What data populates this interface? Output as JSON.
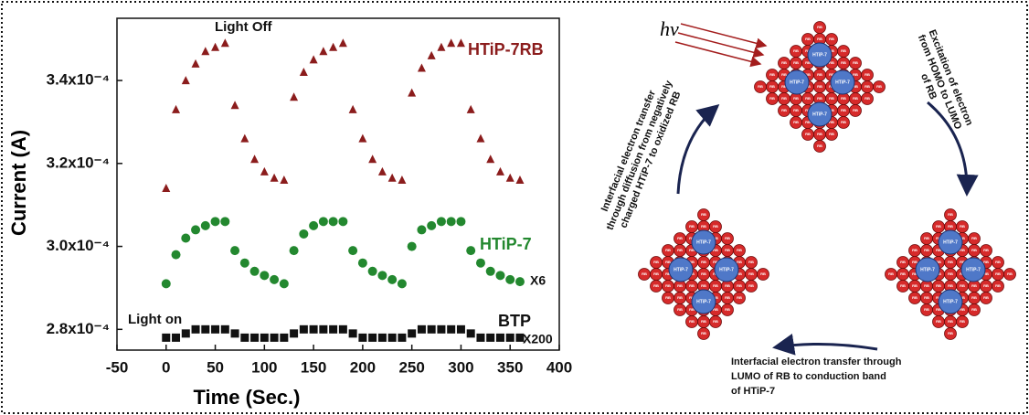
{
  "chart_data": {
    "type": "scatter",
    "xlabel": "Time (Sec.)",
    "ylabel": "Current (A)",
    "xlim": [
      -50,
      400
    ],
    "xticks": [
      -50,
      0,
      50,
      100,
      150,
      200,
      250,
      300,
      350,
      400
    ],
    "ylim": [
      0.000275,
      0.000355
    ],
    "yticks": [
      {
        "value": 0.00028,
        "label": "2.8x10⁻⁴"
      },
      {
        "value": 0.0003,
        "label": "3.0x10⁻⁴"
      },
      {
        "value": 0.00032,
        "label": "3.2x10⁻⁴"
      },
      {
        "value": 0.00034,
        "label": "3.4x10⁻⁴"
      }
    ],
    "x": [
      0,
      10,
      20,
      30,
      40,
      50,
      60,
      70,
      80,
      90,
      100,
      110,
      120,
      130,
      140,
      150,
      160,
      170,
      180,
      190,
      200,
      210,
      220,
      230,
      240,
      250,
      260,
      270,
      280,
      290,
      300,
      310,
      320,
      330,
      340,
      350,
      360
    ],
    "series": [
      {
        "name": "HTiP-7RB",
        "color": "#8b1c1c",
        "marker": "triangle",
        "values": [
          0.000314,
          0.000333,
          0.00034,
          0.000344,
          0.000347,
          0.000348,
          0.000349,
          0.000334,
          0.000326,
          0.000321,
          0.000318,
          0.0003165,
          0.000316,
          0.000336,
          0.000342,
          0.000345,
          0.000347,
          0.000348,
          0.000349,
          0.000333,
          0.000326,
          0.000321,
          0.000318,
          0.0003165,
          0.000316,
          0.000337,
          0.000343,
          0.000346,
          0.000348,
          0.000349,
          0.000349,
          0.000333,
          0.000326,
          0.000321,
          0.000318,
          0.0003165,
          0.000316
        ]
      },
      {
        "name": "HTiP-7",
        "color": "#23882f",
        "marker": "circle",
        "values": [
          0.000291,
          0.000298,
          0.000302,
          0.000304,
          0.000305,
          0.000306,
          0.000306,
          0.000299,
          0.000296,
          0.000294,
          0.000293,
          0.000292,
          0.000291,
          0.000299,
          0.000303,
          0.000305,
          0.000306,
          0.000306,
          0.000306,
          0.000299,
          0.000296,
          0.000294,
          0.000293,
          0.000292,
          0.000291,
          0.0003,
          0.000304,
          0.000305,
          0.000306,
          0.000306,
          0.000306,
          0.000299,
          0.000296,
          0.000294,
          0.000293,
          0.000292,
          0.0002915
        ]
      },
      {
        "name": "BTP",
        "color": "#111111",
        "marker": "square",
        "values": [
          0.000278,
          0.000278,
          0.000279,
          0.00028,
          0.00028,
          0.00028,
          0.00028,
          0.000279,
          0.000278,
          0.000278,
          0.000278,
          0.000278,
          0.000278,
          0.000279,
          0.00028,
          0.00028,
          0.00028,
          0.00028,
          0.00028,
          0.000279,
          0.000278,
          0.000278,
          0.000278,
          0.000278,
          0.000278,
          0.000279,
          0.00028,
          0.00028,
          0.00028,
          0.00028,
          0.00028,
          0.000279,
          0.000278,
          0.000278,
          0.000278,
          0.000278,
          0.000278
        ]
      }
    ],
    "annotations": [
      "Light Off",
      "Light on",
      "X6",
      "X200"
    ]
  },
  "diagram": {
    "light": "hν",
    "particle_labels": {
      "small": "RB",
      "large": "HTiP-7"
    },
    "steps": [
      {
        "lines": [
          "Excitation of electron",
          "from HOMO to LUMO",
          "of RB"
        ]
      },
      {
        "lines": [
          "Interfacial electron transfer through",
          "LUMO of RB to conduction band",
          "of HTiP-7"
        ]
      },
      {
        "lines": [
          "Interfacial electron transfer",
          "through diffusion from negatively",
          "charged HTiP-7 to oxidized RB"
        ]
      }
    ]
  }
}
